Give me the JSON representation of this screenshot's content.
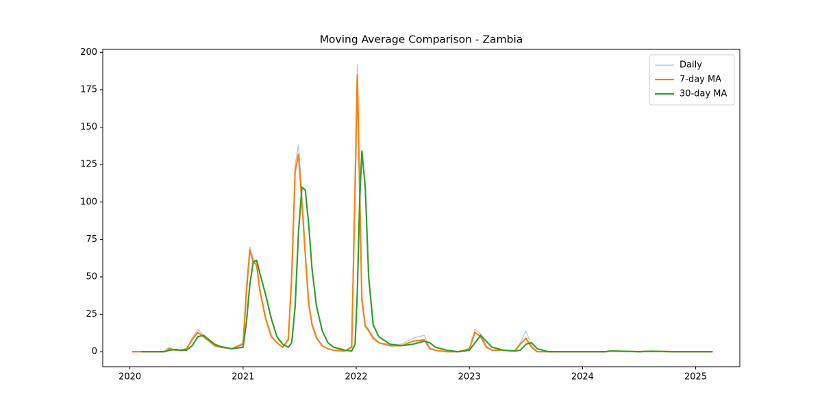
{
  "chart_data": {
    "type": "line",
    "title": "Moving Average Comparison - Zambia",
    "x": [
      2020.02,
      2020.1,
      2020.2,
      2020.3,
      2020.35,
      2020.4,
      2020.45,
      2020.5,
      2020.55,
      2020.6,
      2020.65,
      2020.7,
      2020.75,
      2020.8,
      2020.9,
      2021.0,
      2021.03,
      2021.06,
      2021.09,
      2021.12,
      2021.15,
      2021.2,
      2021.25,
      2021.3,
      2021.35,
      2021.4,
      2021.43,
      2021.46,
      2021.49,
      2021.52,
      2021.55,
      2021.58,
      2021.61,
      2021.65,
      2021.7,
      2021.75,
      2021.8,
      2021.9,
      2021.96,
      2021.99,
      2022.01,
      2022.03,
      2022.05,
      2022.08,
      2022.11,
      2022.15,
      2022.2,
      2022.3,
      2022.4,
      2022.5,
      2022.6,
      2022.65,
      2022.7,
      2022.8,
      2022.9,
      2023.0,
      2023.05,
      2023.1,
      2023.15,
      2023.2,
      2023.3,
      2023.4,
      2023.45,
      2023.5,
      2023.55,
      2023.6,
      2023.7,
      2023.8,
      2024.0,
      2024.2,
      2024.25,
      2024.5,
      2024.6,
      2024.8,
      2025.0,
      2025.15
    ],
    "series": [
      {
        "name": "Daily",
        "color": "#aecde8",
        "width": 1.5,
        "values": [
          0,
          0,
          0,
          0,
          3,
          1,
          1,
          2,
          9,
          15,
          11,
          7,
          4,
          3,
          2,
          6,
          45,
          70,
          62,
          60,
          42,
          23,
          11,
          6,
          3,
          9,
          55,
          125,
          138,
          105,
          68,
          34,
          19,
          10,
          4,
          2,
          1,
          0.5,
          4,
          120,
          192,
          115,
          38,
          18,
          15,
          10,
          6,
          5,
          5,
          9,
          11,
          3,
          1,
          0,
          0,
          2,
          15,
          12,
          4,
          1,
          1,
          0.5,
          6,
          14,
          4,
          0,
          0,
          0,
          0,
          0,
          0.5,
          0,
          0.3,
          0,
          0,
          0
        ]
      },
      {
        "name": "7-day MA",
        "color": "#ff7f0e",
        "width": 2.2,
        "values": [
          0,
          0,
          0,
          0,
          2,
          1,
          1,
          2,
          8,
          13,
          10,
          7,
          4,
          3,
          2,
          5,
          40,
          68,
          60,
          58,
          40,
          22,
          10,
          6,
          3,
          8,
          50,
          120,
          132,
          100,
          65,
          32,
          18,
          9,
          4,
          2,
          1,
          0.5,
          3,
          110,
          185,
          110,
          35,
          17,
          14,
          9,
          6,
          4,
          4,
          7,
          8,
          2,
          1,
          0,
          0,
          2,
          13,
          10,
          3,
          1,
          1,
          0.5,
          5,
          9,
          3,
          0,
          0,
          0,
          0,
          0,
          0.5,
          0,
          0.3,
          0,
          0,
          0
        ]
      },
      {
        "name": "30-day MA",
        "color": "#2ca02c",
        "width": 2.2,
        "values": [
          null,
          0,
          0,
          0,
          1,
          1.5,
          1,
          1,
          4,
          10,
          11,
          8,
          5,
          3.5,
          2,
          3,
          20,
          45,
          60,
          61,
          52,
          38,
          22,
          10,
          5,
          3,
          6,
          30,
          80,
          110,
          108,
          85,
          55,
          30,
          14,
          6,
          3,
          1,
          0.5,
          5,
          40,
          100,
          134,
          110,
          50,
          18,
          10,
          5,
          4,
          5,
          7,
          6,
          3,
          1,
          0,
          1,
          6,
          11,
          7,
          3,
          1,
          0.5,
          1,
          5,
          6,
          2,
          0,
          0,
          0,
          0,
          0.5,
          0,
          0.3,
          0,
          0,
          0
        ]
      }
    ],
    "xlim": [
      2019.76,
      2025.39
    ],
    "xticks": [
      2020,
      2021,
      2022,
      2023,
      2024,
      2025
    ],
    "ylim": [
      -10,
      202
    ],
    "yticks": [
      0,
      25,
      50,
      75,
      100,
      125,
      150,
      175,
      200
    ],
    "grid": false,
    "legend": "upper right"
  }
}
